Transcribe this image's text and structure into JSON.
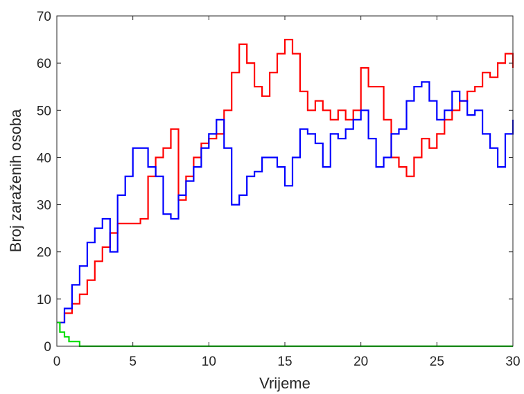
{
  "chart_data": {
    "type": "line",
    "xlabel": "Vrijeme",
    "ylabel": "Broj zaraženih osoba",
    "xlim": [
      0,
      30
    ],
    "ylim": [
      0,
      70
    ],
    "xticks": [
      "0",
      "5",
      "10",
      "15",
      "20",
      "25",
      "30"
    ],
    "yticks": [
      "0",
      "10",
      "20",
      "30",
      "40",
      "50",
      "60",
      "70"
    ],
    "grid": false,
    "series": [
      {
        "color": "#ff0000",
        "x": [
          0,
          0.5,
          1,
          1.5,
          2,
          2.5,
          3,
          3.5,
          4,
          4.5,
          5,
          5.5,
          6,
          6.5,
          7,
          7.5,
          8,
          8.5,
          9,
          9.5,
          10,
          10.5,
          11,
          11.5,
          12,
          12.5,
          13,
          13.5,
          14,
          14.5,
          15,
          15.5,
          16,
          16.5,
          17,
          17.5,
          18,
          18.5,
          19,
          19.5,
          20,
          20.5,
          21,
          21.5,
          22,
          22.5,
          23,
          23.5,
          24,
          24.5,
          25,
          25.5,
          26,
          26.5,
          27,
          27.5,
          28,
          28.5,
          29,
          29.5,
          30
        ],
        "values": [
          5,
          7,
          9,
          11,
          14,
          18,
          21,
          24,
          26,
          26,
          26,
          27,
          36,
          40,
          42,
          46,
          31,
          36,
          40,
          43,
          44,
          45,
          50,
          58,
          64,
          60,
          55,
          53,
          58,
          62,
          65,
          62,
          54,
          50,
          52,
          50,
          48,
          50,
          48,
          50,
          59,
          55,
          55,
          48,
          40,
          38,
          36,
          40,
          44,
          42,
          45,
          48,
          50,
          52,
          54,
          55,
          58,
          57,
          60,
          62,
          59
        ]
      },
      {
        "color": "#0000ff",
        "x": [
          0,
          0.5,
          1,
          1.5,
          2,
          2.5,
          3,
          3.5,
          4,
          4.5,
          5,
          5.5,
          6,
          6.5,
          7,
          7.5,
          8,
          8.5,
          9,
          9.5,
          10,
          10.5,
          11,
          11.5,
          12,
          12.5,
          13,
          13.5,
          14,
          14.5,
          15,
          15.5,
          16,
          16.5,
          17,
          17.5,
          18,
          18.5,
          19,
          19.5,
          20,
          20.5,
          21,
          21.5,
          22,
          22.5,
          23,
          23.5,
          24,
          24.5,
          25,
          25.5,
          26,
          26.5,
          27,
          27.5,
          28,
          28.5,
          29,
          29.5,
          30
        ],
        "values": [
          5,
          8,
          13,
          17,
          22,
          25,
          27,
          20,
          32,
          36,
          42,
          42,
          38,
          36,
          28,
          27,
          32,
          35,
          38,
          42,
          45,
          48,
          42,
          30,
          32,
          36,
          37,
          40,
          40,
          38,
          34,
          40,
          46,
          45,
          43,
          38,
          45,
          44,
          46,
          48,
          50,
          44,
          38,
          40,
          45,
          46,
          52,
          55,
          56,
          52,
          48,
          50,
          54,
          52,
          49,
          50,
          45,
          42,
          38,
          45,
          48
        ]
      },
      {
        "color": "#00dd00",
        "x": [
          0,
          0.2,
          0.5,
          0.8,
          1.4,
          1.5,
          30
        ],
        "values": [
          5,
          3,
          2,
          1,
          1,
          0,
          0
        ]
      }
    ]
  }
}
